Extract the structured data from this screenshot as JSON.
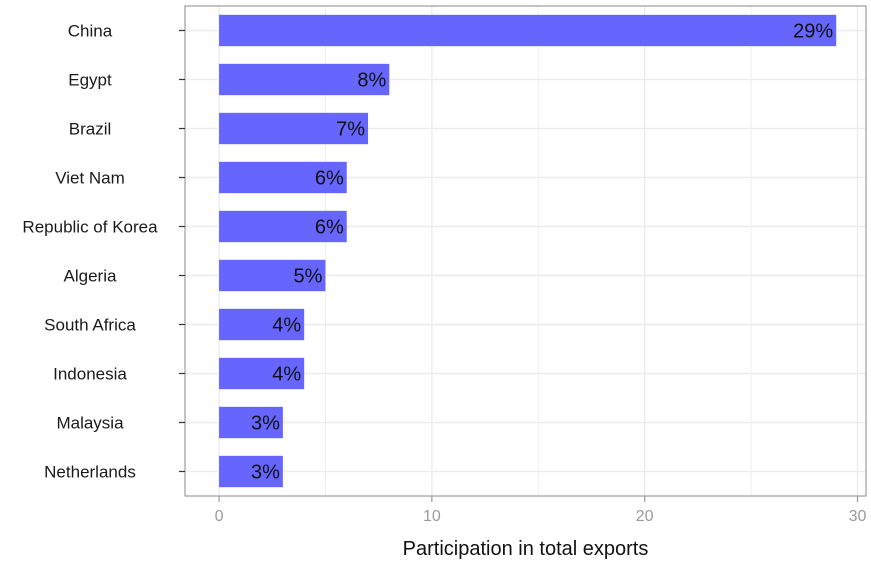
{
  "chart_data": {
    "type": "bar",
    "orientation": "horizontal",
    "categories": [
      "China",
      "Egypt",
      "Brazil",
      "Viet Nam",
      "Republic of Korea",
      "Algeria",
      "South Africa",
      "Indonesia",
      "Malaysia",
      "Netherlands"
    ],
    "values": [
      29,
      8,
      7,
      6,
      6,
      5,
      4,
      4,
      3,
      3
    ],
    "data_labels": [
      "29%",
      "8%",
      "7%",
      "6%",
      "6%",
      "5%",
      "4%",
      "4%",
      "3%",
      "3%"
    ],
    "xlabel": "Participation in total exports",
    "ylabel": "",
    "xlim": [
      -1.6,
      30.4
    ],
    "x_ticks": [
      0,
      10,
      20,
      30
    ],
    "x_tick_labels": [
      "0",
      "10",
      "20",
      "30"
    ],
    "grid": true,
    "bar_color": "#6666ff",
    "grid_color": "#ececec",
    "frame_color": "#8a8a8a"
  }
}
